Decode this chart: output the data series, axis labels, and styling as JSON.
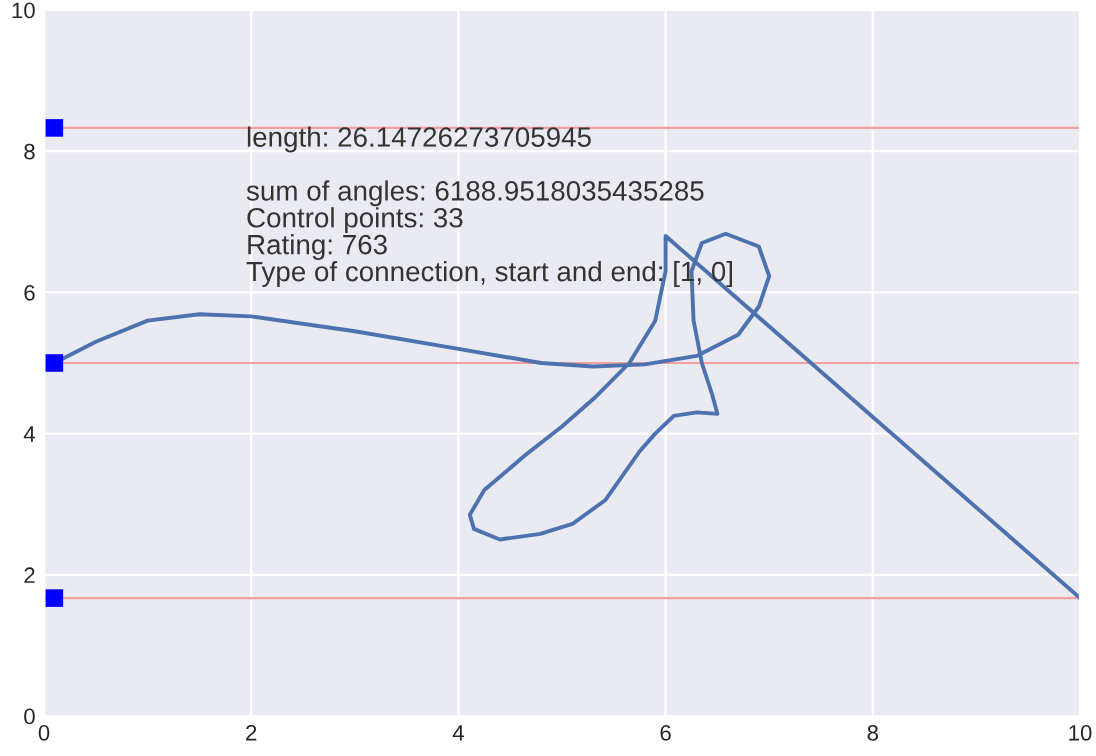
{
  "chart_data": {
    "type": "line",
    "xlim": [
      0,
      10
    ],
    "ylim": [
      0,
      10
    ],
    "xticks": [
      0,
      2,
      4,
      6,
      8,
      10
    ],
    "yticks": [
      0,
      2,
      4,
      6,
      8,
      10
    ],
    "grid": true,
    "series": [
      {
        "color": "#4c72b0",
        "marker": "none",
        "line_style": "solid",
        "x": [
          0.1,
          0.5,
          1.0,
          1.5,
          2.0,
          3.0,
          4.0,
          4.8,
          5.3,
          5.8,
          6.3,
          6.7,
          6.9,
          7.0,
          6.9,
          6.58,
          6.35,
          6.25,
          6.27,
          6.35,
          6.45,
          6.5,
          6.3,
          6.08,
          5.9,
          5.75,
          5.42,
          5.1,
          4.79,
          4.4,
          4.15,
          4.11,
          4.25,
          4.65,
          5.0,
          5.31,
          5.65,
          5.9,
          6.0,
          6.0,
          10
        ],
        "values": [
          5.0,
          5.3,
          5.6,
          5.69,
          5.66,
          5.45,
          5.2,
          5.0,
          4.95,
          4.98,
          5.1,
          5.4,
          5.8,
          6.23,
          6.65,
          6.83,
          6.7,
          6.3,
          5.6,
          5.0,
          4.55,
          4.28,
          4.3,
          4.25,
          4.0,
          3.75,
          3.06,
          2.72,
          2.58,
          2.5,
          2.65,
          2.85,
          3.2,
          3.7,
          4.1,
          4.5,
          5.0,
          5.6,
          6.3,
          6.8,
          1.67
        ]
      },
      {
        "type": "scatter",
        "color": "#0000ff",
        "marker": "square",
        "x": [
          0.1,
          0.1,
          0.1
        ],
        "values": [
          8.33,
          5.0,
          1.67
        ]
      }
    ],
    "ref_lines": [
      {
        "axis": "y",
        "value": 8.33,
        "color": "#f4a0a0"
      },
      {
        "axis": "y",
        "value": 5.0,
        "color": "#f4a0a0"
      },
      {
        "axis": "y",
        "value": 1.67,
        "color": "#f4a0a0"
      }
    ],
    "annotations": [
      "length: 26.14726273705945\n\nsum of angles: 6188.9518035435285\nControl points: 33\nRating: 763\nType of connection, start and end: [1, 0]"
    ]
  }
}
